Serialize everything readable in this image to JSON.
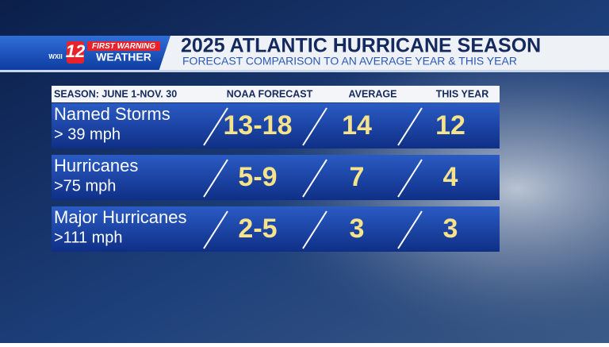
{
  "logo": {
    "station": "WXII",
    "channel": "12",
    "brand_top": "FIRST WARNING",
    "brand_bottom": "WEATHER"
  },
  "header": {
    "title": "2025 ATLANTIC HURRICANE SEASON",
    "subtitle": "FORECAST COMPARISON TO AN AVERAGE YEAR & THIS YEAR"
  },
  "table": {
    "columns": [
      "SEASON: JUNE 1-NOV. 30",
      "NOAA FORECAST",
      "AVERAGE",
      "THIS YEAR"
    ],
    "rows": [
      {
        "name": "Named Storms",
        "threshold": "> 39 mph",
        "noaa": "13-18",
        "average": 14,
        "this_year": 12
      },
      {
        "name": "Hurricanes",
        "threshold": ">75 mph",
        "noaa": "5-9",
        "average": 7,
        "this_year": 4
      },
      {
        "name": "Major Hurricanes",
        "threshold": ">111 mph",
        "noaa": "2-5",
        "average": 3,
        "this_year": 3
      }
    ]
  }
}
